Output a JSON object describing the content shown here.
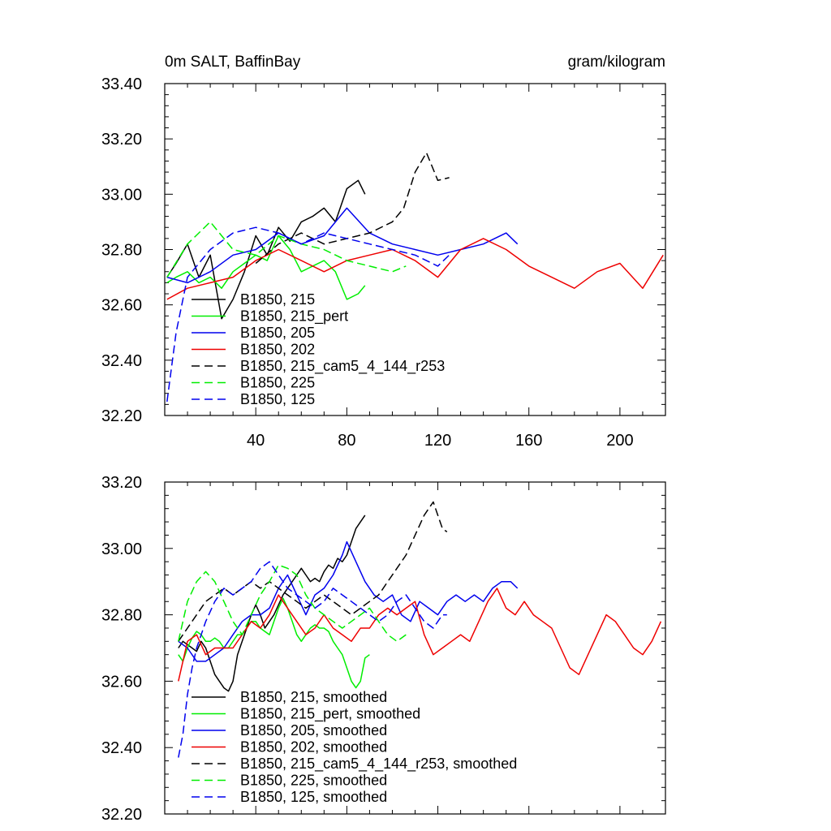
{
  "chart_data": [
    {
      "type": "line",
      "title_left": "0m SALT, BaffinBay",
      "title_right": "gram/kilogram",
      "xlabel": "",
      "ylabel": "",
      "xlim": [
        0,
        220
      ],
      "ylim": [
        32.2,
        33.4
      ],
      "xticks": [
        40,
        80,
        120,
        160,
        200
      ],
      "xtick_labels": [
        "40",
        "80",
        "120",
        "160",
        "200"
      ],
      "yticks": [
        32.2,
        32.4,
        32.6,
        32.8,
        33.0,
        33.2,
        33.4
      ],
      "ytick_labels": [
        "32.20",
        "32.40",
        "32.60",
        "32.80",
        "33.00",
        "33.20",
        "33.40"
      ],
      "legend_position": "bottom-left",
      "series": [
        {
          "name": "B1850, 215",
          "color": "#000000",
          "dash": "solid",
          "x": [
            1,
            5,
            10,
            15,
            20,
            25,
            30,
            35,
            40,
            45,
            50,
            55,
            60,
            65,
            70,
            75,
            80,
            85,
            88
          ],
          "y": [
            32.7,
            32.75,
            32.82,
            32.7,
            32.78,
            32.55,
            32.62,
            32.72,
            32.85,
            32.78,
            32.88,
            32.83,
            32.9,
            32.92,
            32.95,
            32.9,
            33.02,
            33.05,
            33.0
          ]
        },
        {
          "name": "B1850, 215_pert",
          "color": "#00ee00",
          "dash": "solid",
          "x": [
            1,
            5,
            10,
            15,
            20,
            25,
            30,
            35,
            40,
            45,
            50,
            55,
            60,
            65,
            70,
            75,
            80,
            85,
            88
          ],
          "y": [
            32.68,
            32.7,
            32.72,
            32.68,
            32.7,
            32.66,
            32.72,
            32.75,
            32.78,
            32.76,
            32.85,
            32.8,
            32.72,
            32.74,
            32.76,
            32.72,
            32.62,
            32.64,
            32.67
          ]
        },
        {
          "name": "B1850, 205",
          "color": "#0000ee",
          "dash": "solid",
          "x": [
            1,
            10,
            20,
            30,
            40,
            50,
            60,
            70,
            80,
            90,
            100,
            110,
            120,
            130,
            140,
            150,
            155
          ],
          "y": [
            32.7,
            32.68,
            32.72,
            32.78,
            32.8,
            32.86,
            32.82,
            32.85,
            32.95,
            32.86,
            32.82,
            32.8,
            32.78,
            32.8,
            32.82,
            32.86,
            32.82
          ]
        },
        {
          "name": "B1850, 202",
          "color": "#ee0000",
          "dash": "solid",
          "x": [
            1,
            10,
            20,
            30,
            40,
            50,
            60,
            70,
            80,
            90,
            100,
            110,
            120,
            130,
            140,
            150,
            160,
            170,
            180,
            190,
            200,
            210,
            219
          ],
          "y": [
            32.62,
            32.66,
            32.68,
            32.7,
            32.76,
            32.8,
            32.76,
            32.72,
            32.76,
            32.78,
            32.8,
            32.76,
            32.7,
            32.8,
            32.84,
            32.8,
            32.74,
            32.7,
            32.66,
            32.72,
            32.75,
            32.66,
            32.78
          ]
        },
        {
          "name": "B1850, 215_cam5_4_144_r253",
          "color": "#000000",
          "dash": "dashed",
          "x": [
            40,
            50,
            60,
            70,
            80,
            90,
            100,
            105,
            110,
            115,
            120,
            125
          ],
          "y": [
            32.75,
            32.82,
            32.86,
            32.82,
            32.84,
            32.86,
            32.9,
            32.95,
            33.08,
            33.15,
            33.05,
            33.06
          ]
        },
        {
          "name": "B1850, 225",
          "color": "#00ee00",
          "dash": "dashed",
          "x": [
            1,
            10,
            20,
            30,
            40,
            50,
            60,
            70,
            80,
            90,
            100,
            106
          ],
          "y": [
            32.7,
            32.82,
            32.9,
            32.8,
            32.78,
            32.85,
            32.82,
            32.8,
            32.76,
            32.74,
            32.72,
            32.74
          ]
        },
        {
          "name": "B1850, 125",
          "color": "#0000ee",
          "dash": "dashed",
          "x": [
            1,
            5,
            10,
            20,
            30,
            40,
            50,
            60,
            70,
            80,
            90,
            100,
            110,
            120,
            125
          ],
          "y": [
            32.25,
            32.5,
            32.7,
            32.8,
            32.86,
            32.88,
            32.86,
            32.82,
            32.86,
            32.84,
            32.82,
            32.8,
            32.78,
            32.74,
            32.78
          ]
        }
      ]
    },
    {
      "type": "line",
      "title_left": "",
      "title_right": "",
      "xlabel": "",
      "ylabel": "",
      "xlim": [
        0,
        220
      ],
      "ylim": [
        32.2,
        33.2
      ],
      "xticks": [
        40,
        80,
        120,
        160,
        200
      ],
      "xtick_labels": [],
      "yticks": [
        32.2,
        32.4,
        32.6,
        32.8,
        33.0,
        33.2
      ],
      "ytick_labels": [
        "32.20",
        "32.40",
        "32.60",
        "32.80",
        "33.00",
        "33.20"
      ],
      "legend_position": "bottom-left",
      "series": [
        {
          "name": "B1850, 215, smoothed",
          "color": "#000000",
          "dash": "solid",
          "x": [
            6,
            8,
            10,
            12,
            14,
            16,
            18,
            20,
            22,
            24,
            26,
            28,
            30,
            32,
            34,
            36,
            38,
            40,
            42,
            44,
            46,
            48,
            50,
            52,
            54,
            56,
            58,
            60,
            62,
            64,
            66,
            68,
            70,
            72,
            74,
            76,
            78,
            80,
            82,
            84,
            86,
            88
          ],
          "y": [
            32.7,
            32.72,
            32.71,
            32.7,
            32.69,
            32.72,
            32.7,
            32.66,
            32.62,
            32.6,
            32.58,
            32.57,
            32.6,
            32.68,
            32.72,
            32.76,
            32.8,
            32.83,
            32.8,
            32.76,
            32.78,
            32.8,
            32.83,
            32.86,
            32.88,
            32.9,
            32.92,
            32.94,
            32.92,
            32.9,
            32.91,
            32.9,
            32.93,
            32.95,
            32.94,
            32.97,
            32.96,
            32.98,
            33.02,
            33.06,
            33.08,
            33.1
          ]
        },
        {
          "name": "B1850, 215_pert, smoothed",
          "color": "#00ee00",
          "dash": "solid",
          "x": [
            6,
            8,
            10,
            12,
            14,
            16,
            18,
            20,
            22,
            24,
            26,
            28,
            30,
            32,
            34,
            36,
            38,
            40,
            42,
            44,
            46,
            48,
            50,
            52,
            54,
            56,
            58,
            60,
            62,
            64,
            66,
            68,
            70,
            72,
            74,
            76,
            78,
            80,
            82,
            84,
            86,
            88,
            90
          ],
          "y": [
            32.68,
            32.66,
            32.7,
            32.73,
            32.75,
            32.74,
            32.72,
            32.72,
            32.73,
            32.72,
            32.7,
            32.7,
            32.72,
            32.74,
            32.74,
            32.76,
            32.78,
            32.78,
            32.76,
            32.75,
            32.74,
            32.78,
            32.82,
            32.85,
            32.82,
            32.78,
            32.74,
            32.72,
            32.74,
            32.76,
            32.77,
            32.76,
            32.76,
            32.75,
            32.72,
            32.7,
            32.68,
            32.64,
            32.6,
            32.58,
            32.6,
            32.67,
            32.68
          ]
        },
        {
          "name": "B1850, 205, smoothed",
          "color": "#0000ee",
          "dash": "solid",
          "x": [
            6,
            10,
            14,
            18,
            22,
            26,
            30,
            34,
            38,
            42,
            46,
            50,
            54,
            58,
            62,
            66,
            70,
            74,
            78,
            80,
            84,
            88,
            92,
            96,
            100,
            104,
            108,
            112,
            116,
            120,
            124,
            128,
            132,
            136,
            140,
            144,
            148,
            152,
            155
          ],
          "y": [
            32.72,
            32.7,
            32.66,
            32.66,
            32.68,
            32.7,
            32.74,
            32.78,
            32.8,
            32.8,
            32.82,
            32.88,
            32.92,
            32.86,
            32.8,
            32.86,
            32.88,
            32.92,
            32.98,
            33.02,
            32.96,
            32.9,
            32.86,
            32.84,
            32.86,
            32.8,
            32.78,
            32.84,
            32.82,
            32.8,
            32.84,
            32.86,
            32.84,
            32.86,
            32.84,
            32.88,
            32.9,
            32.9,
            32.88
          ]
        },
        {
          "name": "B1850, 202, smoothed",
          "color": "#ee0000",
          "dash": "solid",
          "x": [
            6,
            10,
            14,
            18,
            22,
            26,
            30,
            34,
            38,
            42,
            46,
            50,
            54,
            58,
            62,
            66,
            70,
            74,
            78,
            82,
            86,
            90,
            94,
            98,
            102,
            106,
            110,
            114,
            118,
            122,
            126,
            130,
            134,
            138,
            142,
            146,
            150,
            154,
            158,
            162,
            166,
            170,
            174,
            178,
            182,
            186,
            190,
            194,
            198,
            202,
            206,
            210,
            214,
            218
          ],
          "y": [
            32.6,
            32.72,
            32.74,
            32.68,
            32.7,
            32.7,
            32.7,
            32.74,
            32.78,
            32.76,
            32.8,
            32.86,
            32.82,
            32.78,
            32.74,
            32.76,
            32.8,
            32.76,
            32.74,
            32.72,
            32.76,
            32.76,
            32.8,
            32.82,
            32.8,
            32.82,
            32.84,
            32.74,
            32.68,
            32.7,
            32.72,
            32.74,
            32.72,
            32.78,
            32.84,
            32.88,
            32.82,
            32.8,
            32.84,
            32.8,
            32.78,
            32.76,
            32.7,
            32.64,
            32.62,
            32.68,
            32.74,
            32.8,
            32.78,
            32.74,
            32.7,
            32.68,
            32.72,
            32.78
          ]
        },
        {
          "name": "B1850, 215_cam5_4_144_r253, smoothed",
          "color": "#000000",
          "dash": "dashed",
          "x": [
            6,
            10,
            14,
            18,
            22,
            26,
            30,
            34,
            38,
            42,
            46,
            50,
            54,
            58,
            62,
            66,
            70,
            74,
            78,
            82,
            86,
            90,
            94,
            98,
            102,
            106,
            110,
            114,
            118,
            120,
            122,
            124
          ],
          "y": [
            32.72,
            32.76,
            32.8,
            32.84,
            32.86,
            32.88,
            32.86,
            32.88,
            32.9,
            32.88,
            32.9,
            32.88,
            32.86,
            32.84,
            32.82,
            32.84,
            32.86,
            32.84,
            32.82,
            32.8,
            32.82,
            32.84,
            32.86,
            32.9,
            32.94,
            32.98,
            33.04,
            33.1,
            33.14,
            33.1,
            33.06,
            33.05
          ]
        },
        {
          "name": "B1850, 225, smoothed",
          "color": "#00ee00",
          "dash": "dashed",
          "x": [
            6,
            10,
            14,
            18,
            22,
            26,
            30,
            34,
            38,
            42,
            46,
            50,
            54,
            58,
            62,
            66,
            70,
            74,
            78,
            82,
            86,
            90,
            94,
            98,
            102,
            106
          ],
          "y": [
            32.72,
            32.84,
            32.9,
            32.93,
            32.9,
            32.84,
            32.78,
            32.74,
            32.8,
            32.86,
            32.9,
            32.95,
            32.94,
            32.92,
            32.86,
            32.82,
            32.8,
            32.78,
            32.76,
            32.78,
            32.8,
            32.82,
            32.78,
            32.74,
            32.72,
            32.74
          ]
        },
        {
          "name": "B1850, 125, smoothed",
          "color": "#0000ee",
          "dash": "dashed",
          "x": [
            6,
            8,
            10,
            12,
            14,
            18,
            22,
            26,
            30,
            34,
            38,
            42,
            46,
            50,
            54,
            58,
            62,
            66,
            70,
            74,
            78,
            82,
            86,
            90,
            94,
            98,
            102,
            106,
            110,
            114,
            118,
            122,
            124
          ],
          "y": [
            32.37,
            32.44,
            32.56,
            32.64,
            32.7,
            32.78,
            32.84,
            32.88,
            32.86,
            32.88,
            32.9,
            32.94,
            32.96,
            32.92,
            32.88,
            32.86,
            32.84,
            32.82,
            32.84,
            32.88,
            32.86,
            32.84,
            32.82,
            32.8,
            32.78,
            32.8,
            32.84,
            32.86,
            32.82,
            32.78,
            32.76,
            32.8,
            32.8
          ]
        }
      ]
    }
  ]
}
